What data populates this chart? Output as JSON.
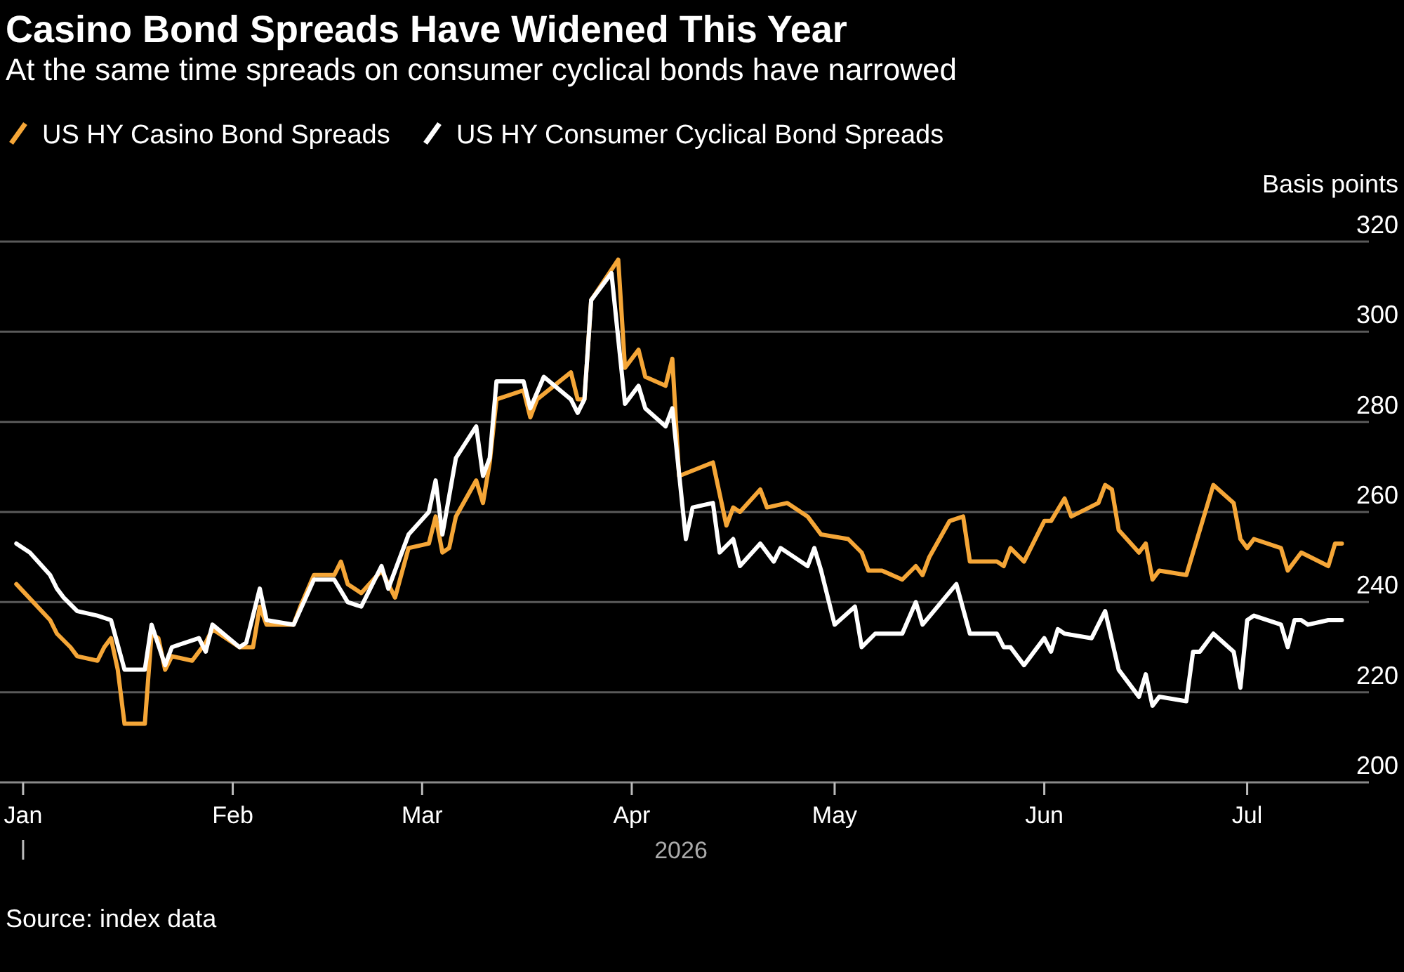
{
  "chart_data": {
    "type": "line",
    "title": "Casino Bond Spreads Have Widened This Year",
    "subtitle": "At the same time spreads on consumer cyclical bonds have narrowed",
    "xlabel": "2026",
    "ylabel": "Basis points",
    "annotations": [
      "Source: index data"
    ],
    "legend": "top left",
    "grid": "y",
    "xlim": [
      "2025-12-29",
      "2026-07-19"
    ],
    "xticks": [
      {
        "value": "2026-01-01",
        "label": "Jan"
      },
      {
        "value": "2026-02-01",
        "label": "Feb"
      },
      {
        "value": "2026-03-01",
        "label": "Mar"
      },
      {
        "value": "2026-04-01",
        "label": "Apr"
      },
      {
        "value": "2026-05-01",
        "label": "May"
      },
      {
        "value": "2026-06-01",
        "label": "Jun"
      },
      {
        "value": "2026-07-01",
        "label": "Jul"
      }
    ],
    "ylim": [
      200,
      320
    ],
    "yticks": [
      200,
      220,
      240,
      260,
      280,
      300,
      320
    ],
    "series": [
      {
        "name": "US HY Casino Bond Spreads",
        "color": "#f5a637",
        "x": [
          "2025-12-31",
          "2026-01-05",
          "2026-01-06",
          "2026-01-08",
          "2026-01-09",
          "2026-01-12",
          "2026-01-13",
          "2026-01-14",
          "2026-01-15",
          "2026-01-16",
          "2026-01-19",
          "2026-01-20",
          "2026-01-21",
          "2026-01-22",
          "2026-01-23",
          "2026-01-26",
          "2026-01-28",
          "2026-01-29",
          "2026-02-02",
          "2026-02-04",
          "2026-02-05",
          "2026-02-06",
          "2026-02-10",
          "2026-02-11",
          "2026-02-13",
          "2026-02-16",
          "2026-02-17",
          "2026-02-18",
          "2026-02-20",
          "2026-02-23",
          "2026-02-25",
          "2026-02-27",
          "2026-03-02",
          "2026-03-03",
          "2026-03-04",
          "2026-03-05",
          "2026-03-06",
          "2026-03-09",
          "2026-03-10",
          "2026-03-11",
          "2026-03-12",
          "2026-03-16",
          "2026-03-17",
          "2026-03-18",
          "2026-03-23",
          "2026-03-24",
          "2026-03-25",
          "2026-03-26",
          "2026-03-30",
          "2026-03-31",
          "2026-04-02",
          "2026-04-03",
          "2026-04-06",
          "2026-04-07",
          "2026-04-08",
          "2026-04-13",
          "2026-04-15",
          "2026-04-16",
          "2026-04-17",
          "2026-04-20",
          "2026-04-21",
          "2026-04-24",
          "2026-04-27",
          "2026-04-29",
          "2026-05-03",
          "2026-05-05",
          "2026-05-06",
          "2026-05-08",
          "2026-05-11",
          "2026-05-13",
          "2026-05-14",
          "2026-05-15",
          "2026-05-18",
          "2026-05-20",
          "2026-05-21",
          "2026-05-25",
          "2026-05-26",
          "2026-05-27",
          "2026-05-29",
          "2026-06-01",
          "2026-06-02",
          "2026-06-04",
          "2026-06-05",
          "2026-06-09",
          "2026-06-10",
          "2026-06-11",
          "2026-06-12",
          "2026-06-15",
          "2026-06-16",
          "2026-06-17",
          "2026-06-18",
          "2026-06-22",
          "2026-06-26",
          "2026-06-29",
          "2026-06-30",
          "2026-07-01",
          "2026-07-02",
          "2026-07-06",
          "2026-07-07",
          "2026-07-09",
          "2026-07-13",
          "2026-07-14",
          "2026-07-15"
        ],
        "values": [
          244,
          236,
          233,
          230,
          228,
          227,
          230,
          232,
          225,
          213,
          213,
          233,
          232,
          225,
          228,
          227,
          231,
          234,
          230,
          230,
          239,
          235,
          235,
          239,
          246,
          246,
          249,
          244,
          242,
          247,
          241,
          252,
          253,
          259,
          251,
          252,
          259,
          267,
          262,
          271,
          285,
          287,
          281,
          285,
          291,
          285,
          285,
          307,
          316,
          292,
          296,
          290,
          288,
          294,
          268,
          271,
          257,
          261,
          260,
          265,
          261,
          262,
          259,
          255,
          254,
          251,
          247,
          247,
          245,
          248,
          246,
          250,
          258,
          259,
          249,
          249,
          248,
          252,
          249,
          258,
          258,
          263,
          259,
          262,
          266,
          265,
          256,
          251,
          253,
          245,
          247,
          246,
          266,
          262,
          254,
          252,
          254,
          252,
          247,
          251,
          248,
          253,
          253
        ]
      },
      {
        "name": "US HY Consumer Cyclical Bond Spreads",
        "color": "#ffffff",
        "x": [
          "2025-12-31",
          "2026-01-02",
          "2026-01-05",
          "2026-01-06",
          "2026-01-07",
          "2026-01-09",
          "2026-01-12",
          "2026-01-14",
          "2026-01-16",
          "2026-01-19",
          "2026-01-20",
          "2026-01-22",
          "2026-01-23",
          "2026-01-27",
          "2026-01-28",
          "2026-01-29",
          "2026-02-02",
          "2026-02-03",
          "2026-02-05",
          "2026-02-06",
          "2026-02-10",
          "2026-02-13",
          "2026-02-16",
          "2026-02-18",
          "2026-02-20",
          "2026-02-23",
          "2026-02-24",
          "2026-02-27",
          "2026-03-02",
          "2026-03-03",
          "2026-03-04",
          "2026-03-06",
          "2026-03-09",
          "2026-03-10",
          "2026-03-11",
          "2026-03-12",
          "2026-03-16",
          "2026-03-17",
          "2026-03-19",
          "2026-03-23",
          "2026-03-24",
          "2026-03-25",
          "2026-03-26",
          "2026-03-29",
          "2026-03-31",
          "2026-04-02",
          "2026-04-03",
          "2026-04-06",
          "2026-04-07",
          "2026-04-09",
          "2026-04-10",
          "2026-04-13",
          "2026-04-14",
          "2026-04-16",
          "2026-04-17",
          "2026-04-20",
          "2026-04-22",
          "2026-04-23",
          "2026-04-27",
          "2026-04-28",
          "2026-04-29",
          "2026-05-01",
          "2026-05-04",
          "2026-05-05",
          "2026-05-07",
          "2026-05-11",
          "2026-05-13",
          "2026-05-14",
          "2026-05-19",
          "2026-05-21",
          "2026-05-25",
          "2026-05-26",
          "2026-05-27",
          "2026-05-29",
          "2026-06-01",
          "2026-06-02",
          "2026-06-03",
          "2026-06-04",
          "2026-06-08",
          "2026-06-10",
          "2026-06-12",
          "2026-06-15",
          "2026-06-16",
          "2026-06-17",
          "2026-06-18",
          "2026-06-22",
          "2026-06-23",
          "2026-06-24",
          "2026-06-26",
          "2026-06-29",
          "2026-06-30",
          "2026-07-01",
          "2026-07-02",
          "2026-07-06",
          "2026-07-07",
          "2026-07-08",
          "2026-07-09",
          "2026-07-10",
          "2026-07-13",
          "2026-07-15"
        ],
        "values": [
          253,
          251,
          246,
          243,
          241,
          238,
          237,
          236,
          225,
          225,
          235,
          226,
          230,
          232,
          229,
          235,
          230,
          231,
          243,
          236,
          235,
          245,
          245,
          240,
          239,
          248,
          243,
          255,
          260,
          267,
          255,
          272,
          279,
          268,
          272,
          289,
          289,
          283,
          290,
          285,
          282,
          285,
          307,
          313,
          284,
          288,
          283,
          279,
          283,
          254,
          261,
          262,
          251,
          254,
          248,
          253,
          249,
          252,
          248,
          252,
          247,
          235,
          239,
          230,
          233,
          233,
          240,
          235,
          244,
          233,
          233,
          230,
          230,
          226,
          232,
          229,
          234,
          233,
          232,
          238,
          225,
          219,
          224,
          217,
          219,
          218,
          229,
          229,
          233,
          229,
          221,
          236,
          237,
          235,
          230,
          236,
          236,
          235,
          236,
          236
        ]
      }
    ]
  }
}
